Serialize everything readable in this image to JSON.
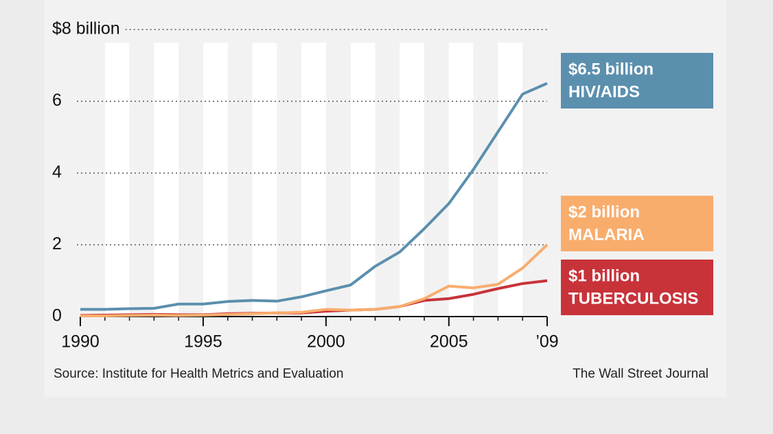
{
  "chart_data": {
    "type": "line",
    "x": [
      1990,
      1991,
      1992,
      1993,
      1994,
      1995,
      1996,
      1997,
      1998,
      1999,
      2000,
      2001,
      2002,
      2003,
      2004,
      2005,
      2006,
      2007,
      2008,
      2009
    ],
    "series": [
      {
        "name": "HIV/AIDS",
        "end_label": "$6.5 billion",
        "color": "#5b8fae",
        "values": [
          0.2,
          0.2,
          0.22,
          0.23,
          0.35,
          0.35,
          0.42,
          0.45,
          0.43,
          0.55,
          0.72,
          0.88,
          1.4,
          1.8,
          2.45,
          3.15,
          4.1,
          5.15,
          6.2,
          6.5
        ]
      },
      {
        "name": "MALARIA",
        "end_label": "$2 billion",
        "color": "#f8ad6d",
        "values": [
          0.02,
          0.02,
          0.03,
          0.04,
          0.03,
          0.04,
          0.06,
          0.08,
          0.1,
          0.12,
          0.2,
          0.18,
          0.2,
          0.28,
          0.5,
          0.85,
          0.8,
          0.9,
          1.35,
          2.0
        ]
      },
      {
        "name": "TUBERCULOSIS",
        "end_label": "$1 billion",
        "color": "#c8333a",
        "values": [
          0.03,
          0.04,
          0.05,
          0.06,
          0.05,
          0.05,
          0.08,
          0.09,
          0.1,
          0.1,
          0.15,
          0.18,
          0.2,
          0.28,
          0.45,
          0.5,
          0.62,
          0.78,
          0.92,
          1.0
        ]
      }
    ],
    "xlim": [
      1990,
      2009
    ],
    "xticks": [
      1990,
      1995,
      2000,
      2005,
      {
        "value": 2009,
        "label": "’09"
      }
    ],
    "ylim": [
      0,
      8
    ],
    "yticks": [
      0,
      2,
      4,
      6,
      {
        "value": 8,
        "label": "$8 billion"
      }
    ],
    "grid": true,
    "source": "Source: Institute for Health Metrics and Evaluation",
    "credit": "The Wall Street Journal"
  }
}
